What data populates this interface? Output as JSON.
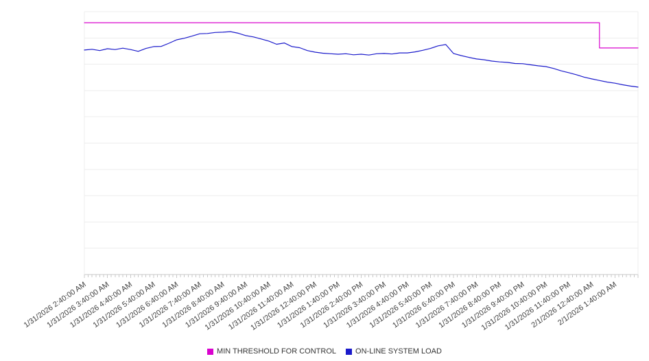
{
  "chart_data": {
    "type": "line",
    "title": "",
    "xlabel": "",
    "ylabel": "",
    "x_range_hours": [
      0,
      24
    ],
    "x_tick_interval_hours": 1,
    "x_minor_tick_minutes": 10,
    "y_axis": {
      "labels_visible": false,
      "normalized_range": [
        0,
        100
      ],
      "gridline_divisions": 10,
      "grid_on": true
    },
    "legend_position": "bottom-center",
    "x_tick_labels": [
      "1/31/2026 2:40:00 AM",
      "1/31/2026 3:40:00 AM",
      "1/31/2026 4:40:00 AM",
      "1/31/2026 5:40:00 AM",
      "1/31/2026 6:40:00 AM",
      "1/31/2026 7:40:00 AM",
      "1/31/2026 8:40:00 AM",
      "1/31/2026 9:40:00 AM",
      "1/31/2026 10:40:00 AM",
      "1/31/2026 11:40:00 AM",
      "1/31/2026 12:40:00 PM",
      "1/31/2026 1:40:00 PM",
      "1/31/2026 2:40:00 PM",
      "1/31/2026 3:40:00 PM",
      "1/31/2026 4:40:00 PM",
      "1/31/2026 5:40:00 PM",
      "1/31/2026 6:40:00 PM",
      "1/31/2026 7:40:00 PM",
      "1/31/2026 8:40:00 PM",
      "1/31/2026 9:40:00 PM",
      "1/31/2026 10:40:00 PM",
      "1/31/2026 11:40:00 PM",
      "2/1/2026 12:40:00 AM",
      "2/1/2026 1:40:00 AM"
    ],
    "series": [
      {
        "name": "MIN THRESHOLD FOR CONTROL",
        "color": "#d902ce",
        "style": "step",
        "points": [
          [
            0,
            95.8
          ],
          [
            22.33,
            95.8
          ],
          [
            22.33,
            86.2
          ],
          [
            24,
            86.2
          ]
        ]
      },
      {
        "name": "ON-LINE SYSTEM LOAD",
        "color": "#1a1acb",
        "style": "line",
        "step_minutes": 20,
        "values": [
          85.4,
          85.7,
          85.2,
          85.9,
          85.6,
          86.1,
          85.6,
          84.9,
          86.0,
          86.7,
          86.8,
          88.0,
          89.3,
          89.9,
          90.7,
          91.6,
          91.7,
          92.1,
          92.2,
          92.4,
          91.8,
          90.9,
          90.4,
          89.6,
          88.8,
          87.6,
          88.1,
          86.7,
          86.3,
          85.2,
          84.6,
          84.2,
          84.0,
          83.8,
          84.0,
          83.6,
          83.8,
          83.5,
          84.0,
          84.1,
          83.9,
          84.3,
          84.3,
          84.7,
          85.3,
          86.0,
          87.0,
          87.5,
          84.1,
          83.3,
          82.6,
          82.0,
          81.7,
          81.2,
          80.9,
          80.7,
          80.3,
          80.2,
          79.8,
          79.4,
          79.1,
          78.4,
          77.5,
          76.8,
          76.0,
          75.1,
          74.4,
          73.8,
          73.2,
          72.8,
          72.2,
          71.7,
          71.3
        ]
      }
    ],
    "colors": {
      "grid": "#ededed",
      "axis": "#c8c8c8",
      "tick": "#c8c8c8",
      "label_text": "#404040"
    }
  }
}
